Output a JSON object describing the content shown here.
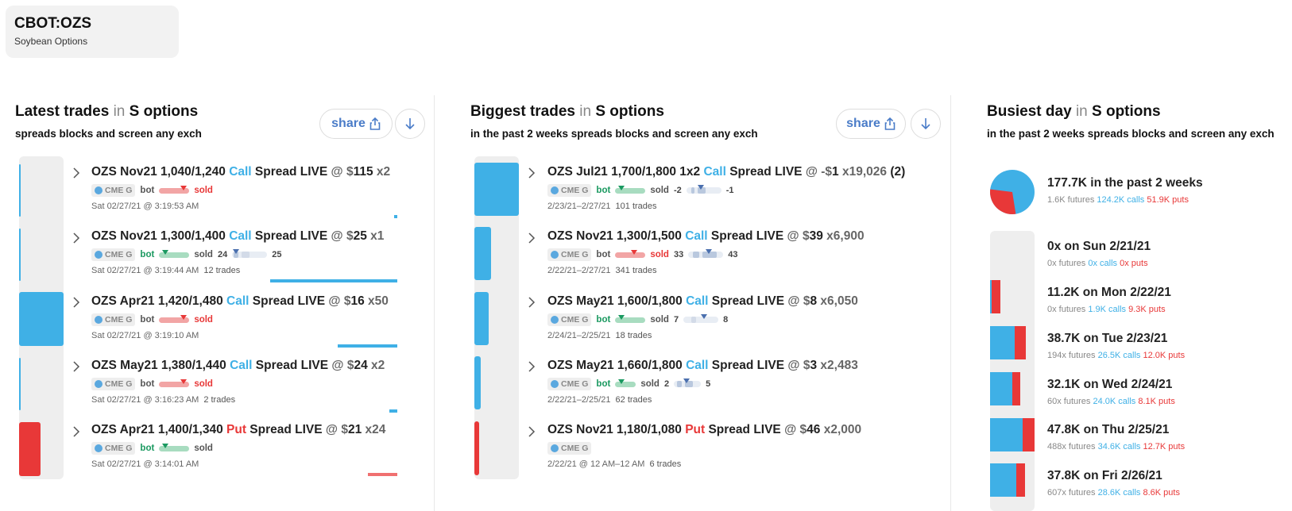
{
  "ticker": {
    "symbol": "CBOT:OZS",
    "name": "Soybean Options"
  },
  "colors": {
    "call": "#3fb0e6",
    "put": "#e83838",
    "bot": "#1a9960",
    "accent": "#4a7cc8"
  },
  "share_label": "share",
  "latest": {
    "title_main": "Latest trades",
    "title_in": "in",
    "title_scope": "S options",
    "subtitle": "spreads blocks and screen any exch",
    "rows": [
      {
        "title_pre": "OZS Nov21 1,040/1,240 ",
        "type": "Call",
        "title_post": " Spread LIVE",
        "at": " @ $",
        "price": "115",
        "qty": " x2",
        "exch": "CME G",
        "bot": "bot",
        "sold": "sold",
        "time": "Sat 02/27/21 @ 3:19:53 AM",
        "trades": ""
      },
      {
        "title_pre": "OZS Nov21 1,300/1,400 ",
        "type": "Call",
        "title_post": " Spread LIVE",
        "at": " @ $",
        "price": "25",
        "qty": " x1",
        "exch": "CME G",
        "bot": "bot",
        "sold": "sold",
        "left_num": "24",
        "right_num": "25",
        "time": "Sat 02/27/21 @ 3:19:44 AM",
        "trades": "12 trades"
      },
      {
        "title_pre": "OZS Apr21 1,420/1,480 ",
        "type": "Call",
        "title_post": " Spread LIVE",
        "at": " @ $",
        "price": "16",
        "qty": " x50",
        "exch": "CME G",
        "bot": "bot",
        "sold": "sold",
        "time": "Sat 02/27/21 @ 3:19:10 AM",
        "trades": ""
      },
      {
        "title_pre": "OZS May21 1,380/1,440 ",
        "type": "Call",
        "title_post": " Spread LIVE",
        "at": " @ $",
        "price": "24",
        "qty": " x2",
        "exch": "CME G",
        "bot": "bot",
        "sold": "sold",
        "time": "Sat 02/27/21 @ 3:16:23 AM",
        "trades": "2 trades"
      },
      {
        "title_pre": "OZS Apr21 1,400/1,340 ",
        "type": "Put",
        "title_post": " Spread LIVE",
        "at": " @ $",
        "price": "21",
        "qty": " x24",
        "exch": "CME G",
        "bot": "bot",
        "sold": "sold",
        "time": "Sat 02/27/21 @ 3:14:01 AM",
        "trades": ""
      }
    ]
  },
  "biggest": {
    "title_main": "Biggest trades",
    "title_in": "in",
    "title_scope": "S options",
    "subtitle": "in the past 2 weeks spreads blocks and screen any exch",
    "rows": [
      {
        "title_pre": "OZS Jul21 1,700/1,800 1x2 ",
        "type": "Call",
        "title_post": " Spread LIVE",
        "at": " @ -$",
        "price": "1",
        "qty": " x19,026",
        "extra": " (2)",
        "exch": "CME G",
        "bot": "bot",
        "sold": "sold",
        "left_num": "-2",
        "right_num": "-1",
        "time": "2/23/21–2/27/21",
        "trades": "101 trades"
      },
      {
        "title_pre": "OZS Nov21 1,300/1,500 ",
        "type": "Call",
        "title_post": " Spread LIVE",
        "at": " @ $",
        "price": "39",
        "qty": " x6,900",
        "extra": "",
        "exch": "CME G",
        "bot": "bot",
        "sold": "sold",
        "left_num": "33",
        "right_num": "43",
        "time": "2/22/21–2/27/21",
        "trades": "341 trades"
      },
      {
        "title_pre": "OZS May21 1,600/1,800 ",
        "type": "Call",
        "title_post": " Spread LIVE",
        "at": " @ $",
        "price": "8",
        "qty": " x6,050",
        "extra": "",
        "exch": "CME G",
        "bot": "bot",
        "sold": "sold",
        "left_num": "7",
        "right_num": "8",
        "time": "2/24/21–2/25/21",
        "trades": "18 trades"
      },
      {
        "title_pre": "OZS May21 1,660/1,800 ",
        "type": "Call",
        "title_post": " Spread LIVE",
        "at": " @ $",
        "price": "3",
        "qty": " x2,483",
        "extra": "",
        "exch": "CME G",
        "bot": "bot",
        "sold": "sold",
        "left_num": "2",
        "right_num": "5",
        "time": "2/22/21–2/25/21",
        "trades": "62 trades"
      },
      {
        "title_pre": "OZS Nov21 1,180/1,080 ",
        "type": "Put",
        "title_post": " Spread LIVE",
        "at": " @ $",
        "price": "46",
        "qty": " x2,000",
        "extra": "",
        "exch": "CME G",
        "time": "2/22/21 @ 12 AM–12 AM",
        "trades": "6 trades"
      }
    ]
  },
  "busiest": {
    "title_main": "Busiest day",
    "title_in": "in",
    "title_scope": "S options",
    "subtitle": "in the past 2 weeks spreads blocks and screen any exch",
    "summary": {
      "title": "177.7K in the past 2 weeks",
      "futures": "1.6K futures ",
      "calls": "124.2K calls ",
      "puts": "51.9K puts",
      "call_fraction": 0.705
    },
    "days": [
      {
        "title": "0x on Sun 2/21/21",
        "futures": "0x futures ",
        "calls": "0x calls ",
        "puts": "0x puts",
        "total_fraction": 0,
        "call_fraction": 0
      },
      {
        "title": "11.2K on Mon 2/22/21",
        "futures": "0x futures ",
        "calls": "1.9K calls ",
        "puts": "9.3K puts",
        "total_fraction": 0.234,
        "call_fraction": 0.17
      },
      {
        "title": "38.7K on Tue 2/23/21",
        "futures": "194x futures ",
        "calls": "26.5K calls ",
        "puts": "12.0K puts",
        "total_fraction": 0.809,
        "call_fraction": 0.685
      },
      {
        "title": "32.1K on Wed 2/24/21",
        "futures": "60x futures ",
        "calls": "24.0K calls ",
        "puts": "8.1K puts",
        "total_fraction": 0.671,
        "call_fraction": 0.748
      },
      {
        "title": "47.8K on Thu 2/25/21",
        "futures": "488x futures ",
        "calls": "34.6K calls ",
        "puts": "12.7K puts",
        "total_fraction": 1.0,
        "call_fraction": 0.724
      },
      {
        "title": "37.8K on Fri 2/26/21",
        "futures": "607x futures ",
        "calls": "28.6K calls ",
        "puts": "8.6K puts",
        "total_fraction": 0.79,
        "call_fraction": 0.757
      }
    ]
  }
}
